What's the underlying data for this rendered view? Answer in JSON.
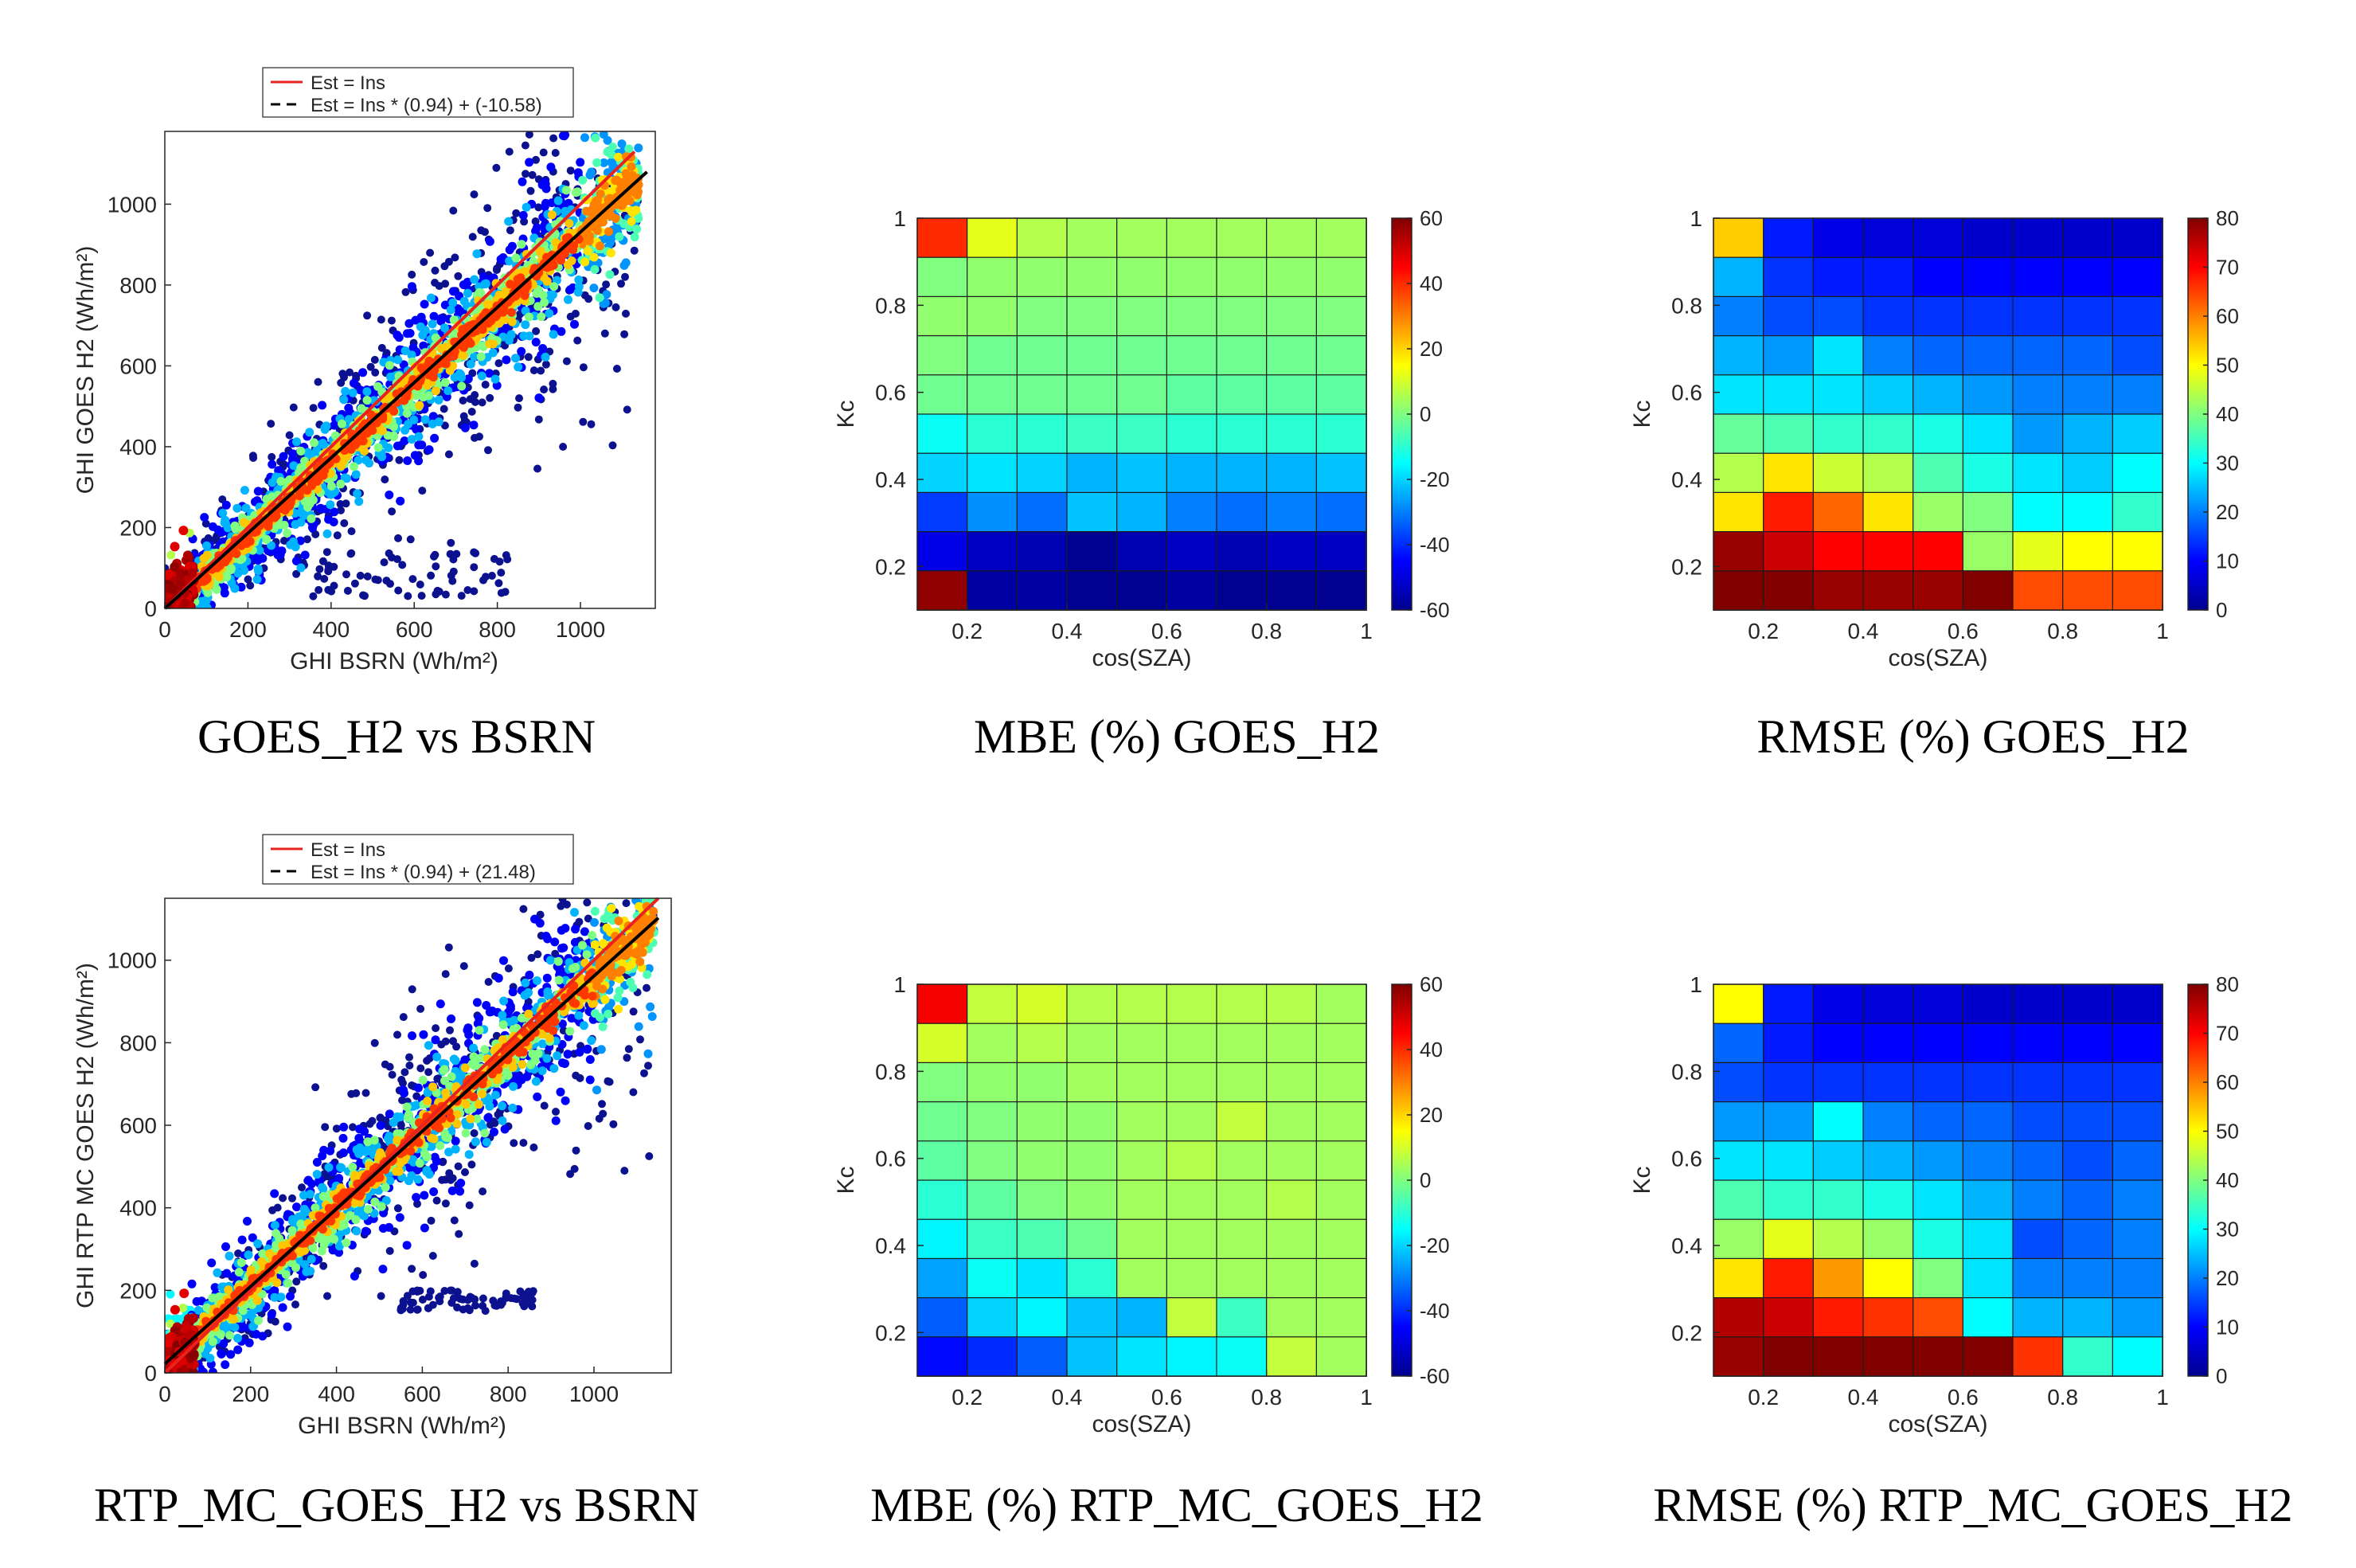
{
  "panels": [
    {
      "id": "scatter-goes-h2",
      "caption": "GOES_H2 vs BSRN",
      "chart_data": {
        "type": "scatter",
        "title": "",
        "xlabel": "GHI BSRN (Wh/m²)",
        "ylabel": "GHI GOES H2 (Wh/m²)",
        "xlim": [
          0,
          1180
        ],
        "ylim": [
          0,
          1180
        ],
        "xticks": [
          0,
          200,
          400,
          600,
          800,
          1000
        ],
        "yticks": [
          0,
          200,
          400,
          600,
          800,
          1000
        ],
        "legend": {
          "placement": "top",
          "entries": [
            {
              "label": "Est = Ins",
              "color": "#e8231f",
              "style": "solid"
            },
            {
              "label": "Est = Ins * (0.94) + (-10.58)",
              "color": "#000000",
              "style": "dashed"
            }
          ]
        },
        "lines": [
          {
            "name": "Est = Ins",
            "slope": 1.0,
            "intercept": 0,
            "x": [
              0,
              1130
            ],
            "color": "#e8231f"
          },
          {
            "name": "Est = Ins * (0.94) + (-10.58)",
            "slope": 0.94,
            "intercept": -10.58,
            "x": [
              0,
              1160
            ],
            "color": "#000000"
          }
        ],
        "density": {
          "slope": 0.94,
          "intercept": -10.58,
          "xmax": 1140,
          "description": "dense colored point cloud along fit line"
        },
        "outliers": {
          "cluster_x": [
            300,
            840
          ],
          "cluster_y": [
            30,
            140
          ]
        }
      }
    },
    {
      "id": "mbe-goes-h2",
      "caption": "MBE (%) GOES_H2",
      "chart_data": {
        "type": "heatmap",
        "xlabel": "cos(SZA)",
        "ylabel": "Kc",
        "xlim": [
          0.1,
          1.0
        ],
        "ylim": [
          0.1,
          1.0
        ],
        "xticks": [
          0.2,
          0.4,
          0.6,
          0.8,
          1
        ],
        "yticks": [
          0.2,
          0.4,
          0.6,
          0.8,
          1
        ],
        "xtick_labels": [
          "0.2",
          "0.4",
          "0.6",
          "0.8",
          "1"
        ],
        "ytick_labels": [
          "0.2",
          "0.4",
          "0.6",
          "0.8",
          "1"
        ],
        "colorbar": {
          "min": -60,
          "max": 60,
          "ticks": [
            -60,
            -40,
            -20,
            0,
            20,
            40,
            60
          ]
        },
        "rows_top_to_bottom": [
          [
            40,
            12,
            6,
            4,
            4,
            4,
            4,
            4,
            4
          ],
          [
            0,
            2,
            2,
            2,
            2,
            2,
            2,
            2,
            2
          ],
          [
            2,
            2,
            0,
            0,
            0,
            0,
            0,
            0,
            0
          ],
          [
            0,
            -2,
            -2,
            -2,
            -2,
            -2,
            -2,
            -2,
            -2
          ],
          [
            -2,
            -2,
            -2,
            -2,
            -2,
            -4,
            -4,
            -4,
            -4
          ],
          [
            -14,
            -10,
            -10,
            -8,
            -8,
            -10,
            -10,
            -10,
            -10
          ],
          [
            -20,
            -18,
            -20,
            -24,
            -22,
            -24,
            -24,
            -24,
            -22
          ],
          [
            -38,
            -28,
            -32,
            -22,
            -24,
            -30,
            -32,
            -30,
            -32
          ],
          [
            -48,
            -52,
            -54,
            -58,
            -54,
            -52,
            -54,
            -52,
            -52
          ],
          [
            58,
            -56,
            -56,
            -58,
            -58,
            -56,
            -58,
            -58,
            -58
          ]
        ]
      }
    },
    {
      "id": "rmse-goes-h2",
      "caption": "RMSE (%) GOES_H2",
      "chart_data": {
        "type": "heatmap",
        "xlabel": "cos(SZA)",
        "ylabel": "Kc",
        "xlim": [
          0.1,
          1.0
        ],
        "ylim": [
          0.1,
          1.0
        ],
        "xticks": [
          0.2,
          0.4,
          0.6,
          0.8,
          1
        ],
        "yticks": [
          0.2,
          0.4,
          0.6,
          0.8,
          1
        ],
        "xtick_labels": [
          "0.2",
          "0.4",
          "0.6",
          "0.8",
          "1"
        ],
        "ytick_labels": [
          "0.2",
          "0.4",
          "0.6",
          "0.8",
          "1"
        ],
        "colorbar": {
          "min": 0,
          "max": 80,
          "ticks": [
            0,
            10,
            20,
            30,
            40,
            50,
            60,
            70,
            80
          ]
        },
        "rows_top_to_bottom": [
          [
            54,
            12,
            8,
            7,
            7,
            6,
            6,
            6,
            6
          ],
          [
            24,
            14,
            12,
            12,
            10,
            10,
            10,
            10,
            10
          ],
          [
            20,
            16,
            16,
            14,
            14,
            14,
            14,
            14,
            14
          ],
          [
            24,
            22,
            28,
            20,
            18,
            18,
            18,
            18,
            16
          ],
          [
            28,
            28,
            28,
            26,
            24,
            22,
            20,
            20,
            20
          ],
          [
            38,
            36,
            34,
            34,
            32,
            28,
            22,
            24,
            26
          ],
          [
            44,
            52,
            46,
            44,
            36,
            32,
            28,
            26,
            30
          ],
          [
            52,
            68,
            62,
            52,
            42,
            40,
            30,
            30,
            34
          ],
          [
            78,
            74,
            70,
            70,
            70,
            42,
            48,
            50,
            50
          ],
          [
            80,
            80,
            78,
            78,
            78,
            80,
            64,
            64,
            64
          ]
        ]
      }
    },
    {
      "id": "scatter-rtp-mc-goes-h2",
      "caption": "RTP_MC_GOES_H2 vs BSRN",
      "chart_data": {
        "type": "scatter",
        "title": "",
        "xlabel": "GHI BSRN (Wh/m²)",
        "ylabel": "GHI RTP MC GOES H2 (Wh/m²)",
        "xlim": [
          0,
          1180
        ],
        "ylim": [
          0,
          1150
        ],
        "xticks": [
          0,
          200,
          400,
          600,
          800,
          1000
        ],
        "yticks": [
          0,
          200,
          400,
          600,
          800,
          1000
        ],
        "legend": {
          "placement": "top",
          "entries": [
            {
              "label": "Est = Ins",
              "color": "#e8231f",
              "style": "solid"
            },
            {
              "label": "Est = Ins * (0.94) + (21.48)",
              "color": "#000000",
              "style": "dashed"
            }
          ]
        },
        "lines": [
          {
            "name": "Est = Ins",
            "slope": 1.0,
            "intercept": 0,
            "x": [
              0,
              1150
            ],
            "color": "#e8231f"
          },
          {
            "name": "Est = Ins * (0.94) + (21.48)",
            "slope": 0.94,
            "intercept": 21.48,
            "x": [
              0,
              1150
            ],
            "color": "#000000"
          }
        ],
        "density": {
          "slope": 0.94,
          "intercept": 21.48,
          "xmax": 1140,
          "description": "dense colored point cloud along fit line"
        },
        "outliers": {
          "cluster_x": [
            550,
            860
          ],
          "cluster_y": [
            150,
            200
          ]
        }
      }
    },
    {
      "id": "mbe-rtp-mc-goes-h2",
      "caption": "MBE (%) RTP_MC_GOES_H2",
      "chart_data": {
        "type": "heatmap",
        "xlabel": "cos(SZA)",
        "ylabel": "Kc",
        "xlim": [
          0.1,
          1.0
        ],
        "ylim": [
          0.1,
          1.0
        ],
        "xticks": [
          0.2,
          0.4,
          0.6,
          0.8,
          1
        ],
        "yticks": [
          0.2,
          0.4,
          0.6,
          0.8,
          1
        ],
        "xtick_labels": [
          "0.2",
          "0.4",
          "0.6",
          "0.8",
          "1"
        ],
        "ytick_labels": [
          "0.2",
          "0.4",
          "0.6",
          "0.8",
          "1"
        ],
        "colorbar": {
          "min": -60,
          "max": 60,
          "ticks": [
            -60,
            -40,
            -20,
            0,
            20,
            40,
            60
          ]
        },
        "rows_top_to_bottom": [
          [
            46,
            8,
            10,
            6,
            6,
            6,
            6,
            6,
            4
          ],
          [
            10,
            4,
            6,
            4,
            4,
            4,
            4,
            4,
            4
          ],
          [
            0,
            2,
            2,
            4,
            4,
            4,
            4,
            4,
            4
          ],
          [
            -2,
            0,
            2,
            2,
            4,
            4,
            8,
            4,
            4
          ],
          [
            -4,
            0,
            2,
            2,
            4,
            6,
            4,
            4,
            4
          ],
          [
            -10,
            -4,
            0,
            2,
            4,
            4,
            4,
            6,
            4
          ],
          [
            -16,
            -8,
            -6,
            -2,
            4,
            4,
            4,
            4,
            4
          ],
          [
            -26,
            -14,
            -18,
            -10,
            4,
            4,
            4,
            4,
            4
          ],
          [
            -34,
            -20,
            -16,
            -22,
            -24,
            8,
            -8,
            4,
            4
          ],
          [
            -44,
            -40,
            -34,
            -22,
            -18,
            -16,
            -14,
            8,
            4
          ]
        ]
      }
    },
    {
      "id": "rmse-rtp-mc-goes-h2",
      "caption": "RMSE (%) RTP_MC_GOES_H2",
      "chart_data": {
        "type": "heatmap",
        "xlabel": "cos(SZA)",
        "ylabel": "Kc",
        "xlim": [
          0.1,
          1.0
        ],
        "ylim": [
          0.1,
          1.0
        ],
        "xticks": [
          0.2,
          0.4,
          0.6,
          0.8,
          1
        ],
        "yticks": [
          0.2,
          0.4,
          0.6,
          0.8,
          1
        ],
        "xtick_labels": [
          "0.2",
          "0.4",
          "0.6",
          "0.8",
          "1"
        ],
        "ytick_labels": [
          "0.2",
          "0.4",
          "0.6",
          "0.8",
          "1"
        ],
        "colorbar": {
          "min": 0,
          "max": 80,
          "ticks": [
            0,
            10,
            20,
            30,
            40,
            50,
            60,
            70,
            80
          ]
        },
        "rows_top_to_bottom": [
          [
            50,
            12,
            8,
            7,
            7,
            6,
            6,
            6,
            6
          ],
          [
            18,
            12,
            10,
            10,
            10,
            10,
            10,
            10,
            10
          ],
          [
            16,
            14,
            14,
            14,
            14,
            14,
            14,
            14,
            14
          ],
          [
            22,
            22,
            30,
            20,
            18,
            18,
            16,
            16,
            16
          ],
          [
            28,
            28,
            26,
            24,
            22,
            20,
            18,
            16,
            18
          ],
          [
            36,
            34,
            34,
            32,
            28,
            24,
            20,
            18,
            20
          ],
          [
            42,
            48,
            44,
            42,
            32,
            28,
            16,
            18,
            20
          ],
          [
            52,
            68,
            58,
            50,
            40,
            28,
            20,
            20,
            20
          ],
          [
            76,
            74,
            68,
            66,
            64,
            30,
            24,
            24,
            22
          ],
          [
            78,
            80,
            80,
            80,
            80,
            80,
            66,
            34,
            30
          ]
        ]
      }
    }
  ]
}
